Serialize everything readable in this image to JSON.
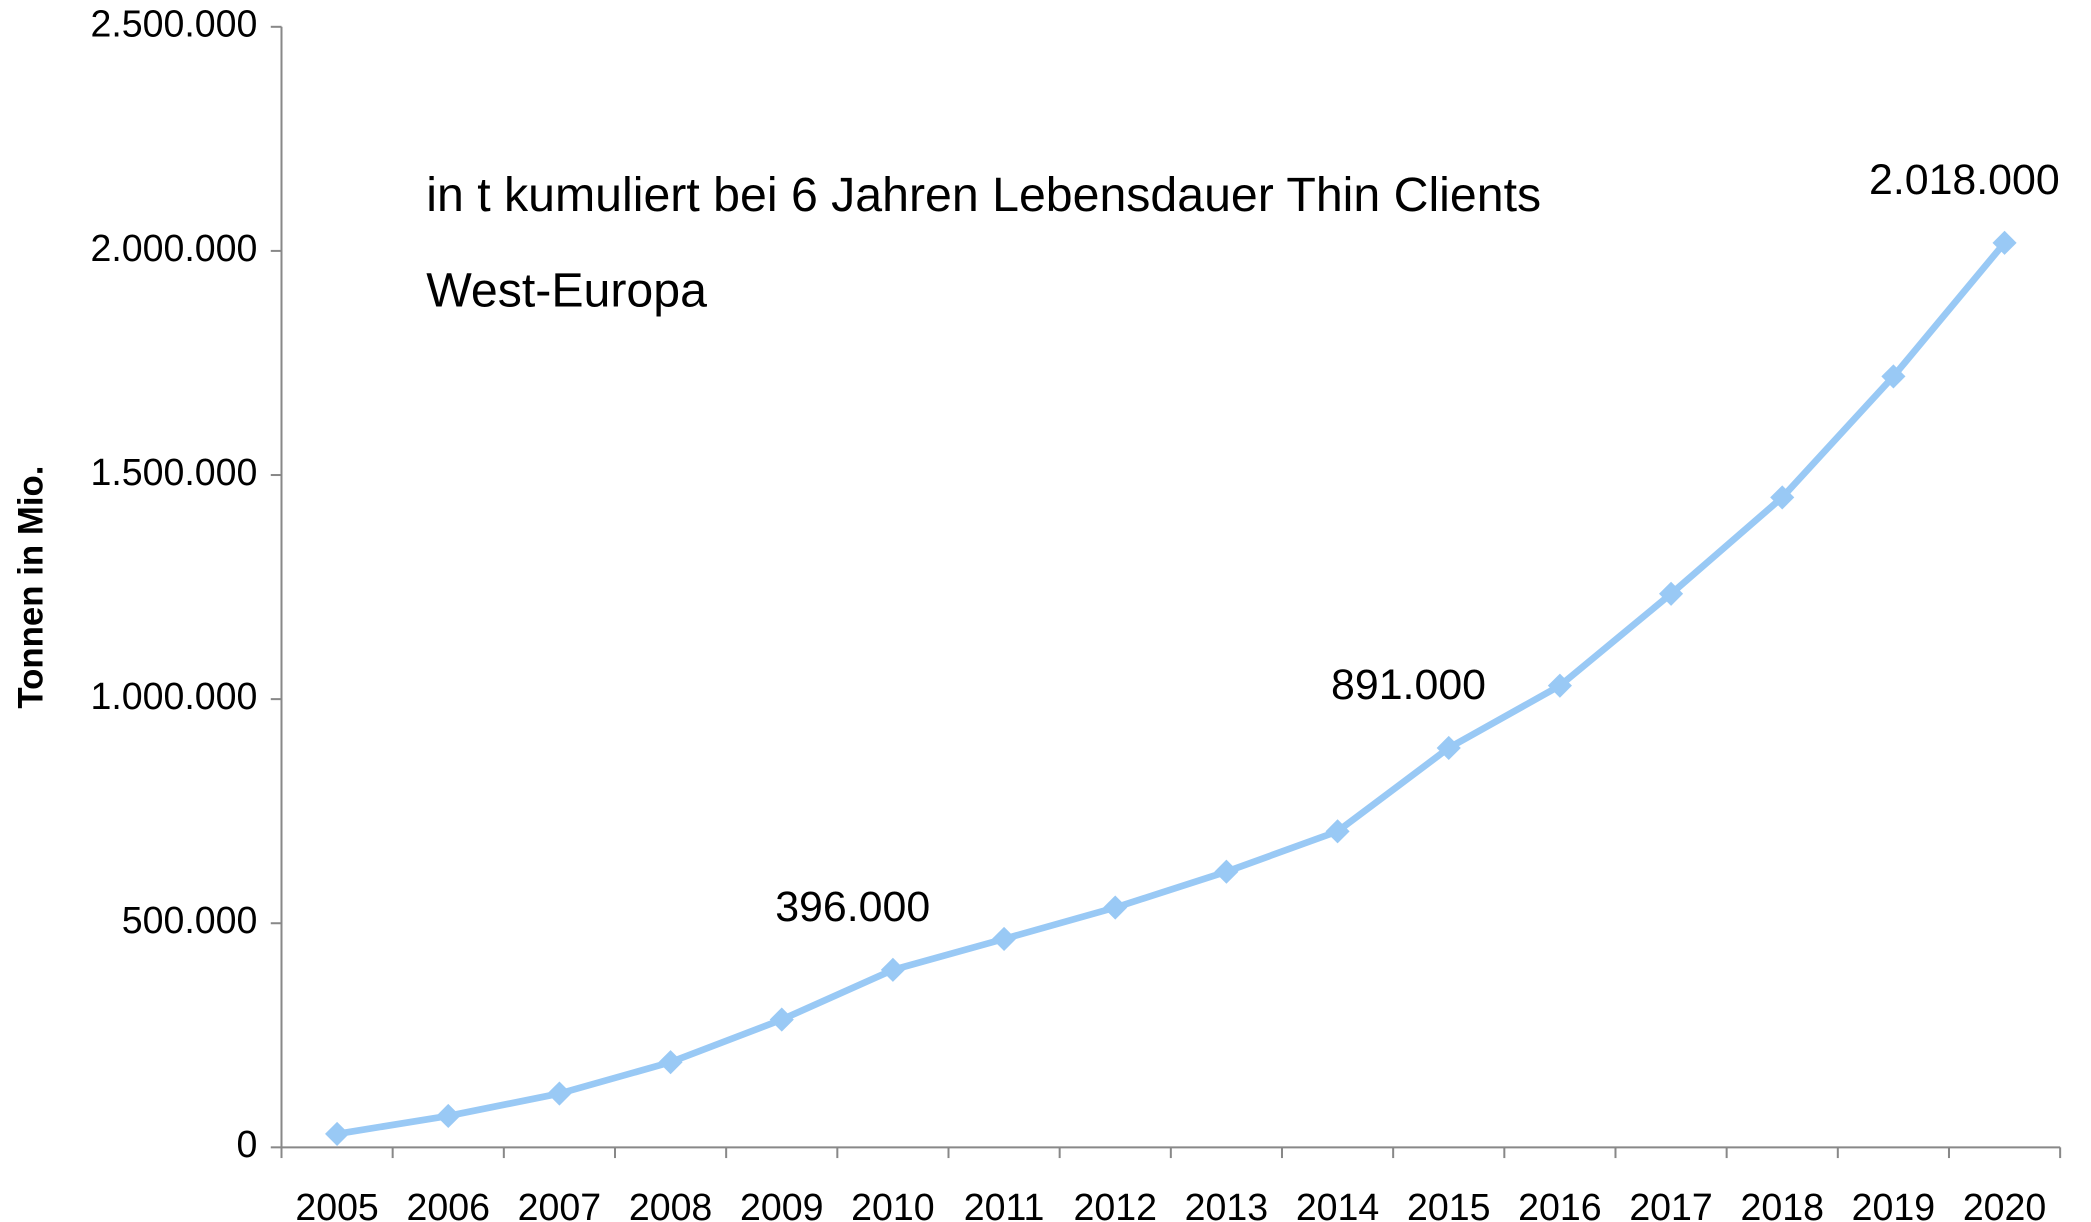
{
  "chart_data": {
    "type": "line",
    "ylabel": "Tonnen in Mio.",
    "annotations": [
      "in t kumuliert bei 6 Jahren Lebensdauer Thin Clients",
      "West-Europa"
    ],
    "categories": [
      "2005",
      "2006",
      "2007",
      "2008",
      "2009",
      "2010",
      "2011",
      "2012",
      "2013",
      "2014",
      "2015",
      "2016",
      "2017",
      "2018",
      "2019",
      "2020"
    ],
    "series": [
      {
        "color": "#99c9f5",
        "values": [
          30000,
          70000,
          120000,
          190000,
          285000,
          396000,
          465000,
          535000,
          615000,
          705000,
          891000,
          1030000,
          1235000,
          1450000,
          1720000,
          2018000
        ],
        "value_labels": [
          null,
          null,
          null,
          null,
          null,
          "396.000",
          null,
          null,
          null,
          null,
          "891.000",
          null,
          null,
          null,
          null,
          "2.018.000"
        ]
      }
    ],
    "ylim": [
      0,
      2500000
    ],
    "yticks": [
      0,
      {
        "value": 500000,
        "label": "500.000"
      },
      {
        "value": 1000000,
        "label": "1.000.000"
      },
      {
        "value": 1500000,
        "label": "1.500.000"
      },
      {
        "value": 2000000,
        "label": "2.000.000"
      },
      {
        "value": 2500000,
        "label": "2.500.000"
      }
    ],
    "grid": false
  }
}
